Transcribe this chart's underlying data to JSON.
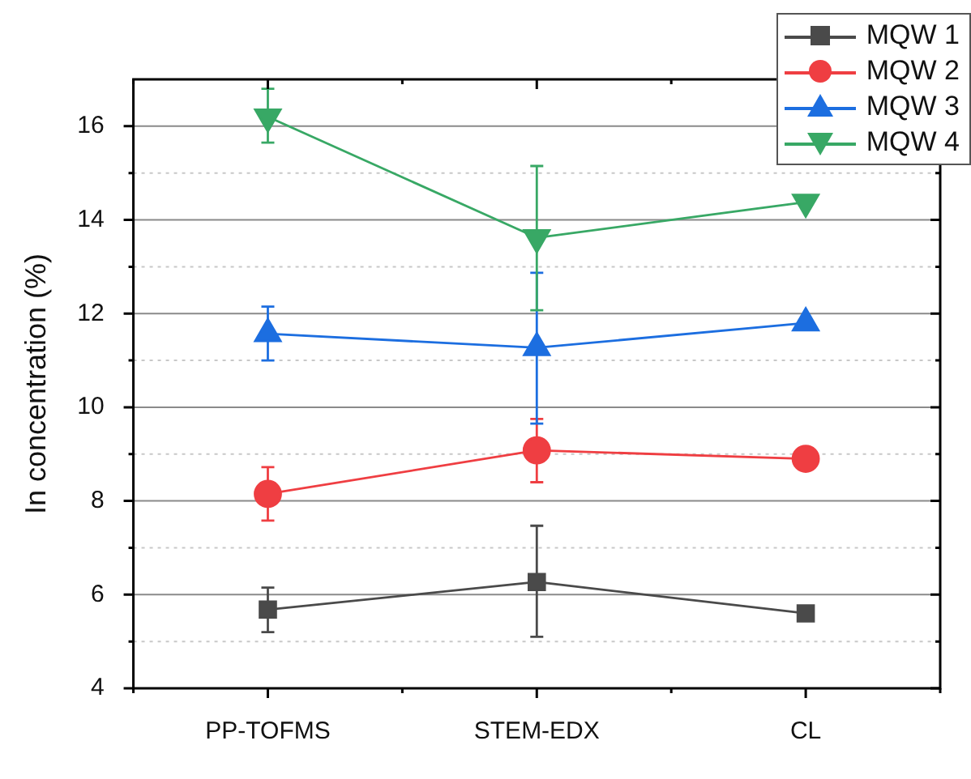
{
  "chart_data": {
    "type": "line",
    "ylabel": "In concentration (%)",
    "categories": [
      "PP-TOFMS",
      "STEM-EDX",
      "CL"
    ],
    "series": [
      {
        "name": "MQW 1",
        "color": "#4a4a4a",
        "marker": "square",
        "values": [
          5.68,
          6.27,
          5.6
        ],
        "errors": [
          [
            5.2,
            6.15
          ],
          [
            5.1,
            7.47
          ],
          null
        ]
      },
      {
        "name": "MQW 2",
        "color": "#ef3e42",
        "marker": "circle",
        "values": [
          8.15,
          9.08,
          8.9
        ],
        "errors": [
          [
            7.58,
            8.72
          ],
          [
            8.4,
            9.75
          ],
          null
        ]
      },
      {
        "name": "MQW 3",
        "color": "#1c6ee0",
        "marker": "triangle",
        "values": [
          11.57,
          11.27,
          11.8
        ],
        "errors": [
          [
            11.0,
            12.15
          ],
          [
            9.65,
            12.87
          ],
          null
        ]
      },
      {
        "name": "MQW 4",
        "color": "#38a865",
        "marker": "triangle-down",
        "values": [
          16.2,
          13.62,
          14.38
        ],
        "errors": [
          [
            15.65,
            16.8
          ],
          [
            12.07,
            15.15
          ],
          null
        ]
      }
    ],
    "ylim": [
      4,
      17
    ],
    "yticks": [
      4,
      {
        "value": 5,
        "label": null
      },
      6,
      {
        "value": 7,
        "label": null
      },
      8,
      {
        "value": 9,
        "label": null
      },
      10,
      {
        "value": 11,
        "label": null
      },
      12,
      {
        "value": 13,
        "label": null
      },
      14,
      {
        "value": 15,
        "label": null
      },
      16
    ],
    "grid": "y",
    "legend": "top right",
    "line_style": "solid"
  }
}
